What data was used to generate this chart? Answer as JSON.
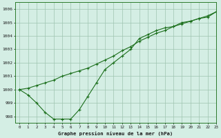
{
  "line1_x": [
    0,
    1,
    2,
    3,
    4,
    5,
    6,
    7,
    8,
    9,
    10,
    11,
    12,
    13,
    14,
    15,
    16,
    17,
    18,
    19,
    20,
    21,
    22,
    23
  ],
  "line1_y": [
    1000.0,
    999.6,
    999.0,
    998.3,
    997.8,
    997.8,
    997.8,
    998.5,
    999.5,
    1000.5,
    1001.5,
    1002.0,
    1002.5,
    1003.0,
    1003.8,
    1004.1,
    1004.4,
    1004.6,
    1004.7,
    1005.0,
    1005.1,
    1005.3,
    1005.4,
    1005.8
  ],
  "line2_x": [
    0,
    1,
    2,
    3,
    4,
    5,
    6,
    7,
    8,
    9,
    10,
    11,
    12,
    13,
    14,
    15,
    16,
    17,
    18,
    19,
    20,
    21,
    22,
    23
  ],
  "line2_y": [
    1000.0,
    1000.1,
    1000.3,
    1000.5,
    1000.7,
    1001.0,
    1001.2,
    1001.4,
    1001.6,
    1001.9,
    1002.2,
    1002.5,
    1002.9,
    1003.2,
    1003.6,
    1003.9,
    1004.2,
    1004.4,
    1004.7,
    1004.9,
    1005.1,
    1005.3,
    1005.5,
    1005.8
  ],
  "line_color": "#1a6e1a",
  "bg_color": "#d4eee4",
  "grid_color": "#9ec4b0",
  "xlabel": "Graphe pression niveau de la mer (hPa)",
  "ylim": [
    997.5,
    1006.5
  ],
  "xlim": [
    -0.5,
    23
  ],
  "yticks": [
    998,
    999,
    1000,
    1001,
    1002,
    1003,
    1004,
    1005,
    1006
  ],
  "xticks": [
    0,
    1,
    2,
    3,
    4,
    5,
    6,
    7,
    8,
    9,
    10,
    11,
    12,
    13,
    14,
    15,
    16,
    17,
    18,
    19,
    20,
    21,
    22,
    23
  ]
}
